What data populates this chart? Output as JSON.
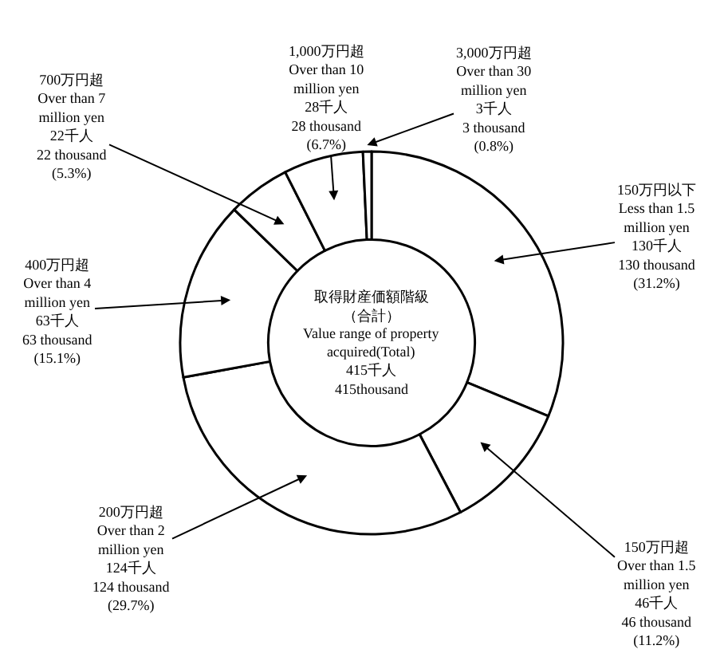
{
  "chart_data": {
    "type": "donut",
    "legend": false,
    "categories": [
      "150万円以下\nLess than 1.5\nmillion yen",
      "150万円超\nOver than 1.5\nmillion yen",
      "200万円超\nOver than 2\nmillion yen",
      "400万円超\nOver than 4\nmillion yen",
      "700万円超\nOver than 7\nmillion yen",
      "1,000万円超\nOver than 10\nmillion yen",
      "3,000万円超\nOver than 30\nmillion yen"
    ],
    "values": [
      130,
      46,
      124,
      63,
      22,
      28,
      3
    ],
    "value_labels": [
      "130千人\n130 thousand\n(31.2%)",
      "46千人\n46 thousand\n(11.2%)",
      "124千人\n124 thousand\n(29.7%)",
      "63千人\n63 thousand\n(15.1%)",
      "22千人\n22 thousand\n(5.3%)",
      "28千人\n28 thousand\n(6.7%)",
      "3千人\n3 thousand\n(0.8%)"
    ],
    "colors": [
      "#ffffff",
      "#ffffff",
      "#ffffff",
      "#ffffff",
      "#ffffff",
      "#ffffff",
      "#ffffff"
    ],
    "annotations": [
      "取得財産価額階級",
      "（合計）",
      "Value range of property\nacquired(Total)",
      "415千人",
      "415thousand"
    ]
  }
}
